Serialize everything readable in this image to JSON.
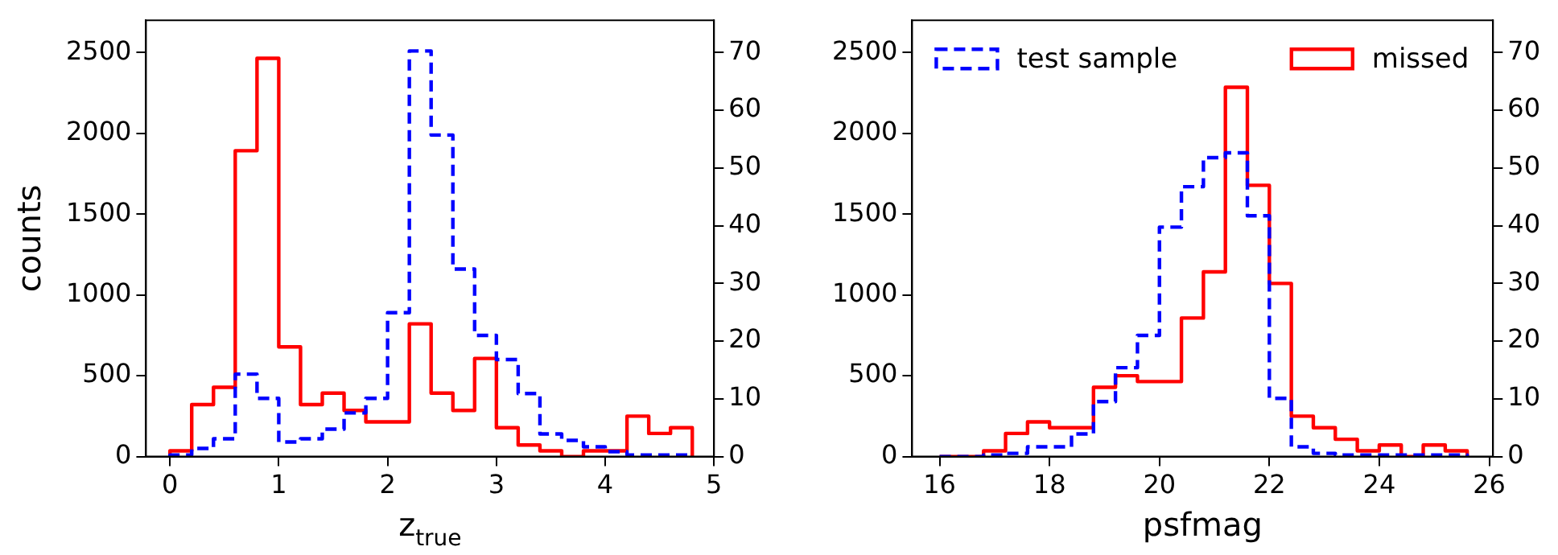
{
  "chart_data": [
    {
      "type": "histogram",
      "xlabel": "z$_{true}$",
      "ylabel": "counts",
      "bins": [
        0,
        0.2,
        0.4,
        0.6,
        0.8,
        1.0,
        1.2,
        1.4,
        1.6,
        1.8,
        2.0,
        2.2,
        2.4,
        2.6,
        2.8,
        3.0,
        3.2,
        3.4,
        3.6,
        3.8,
        4.0,
        4.2,
        4.4,
        4.6,
        4.8
      ],
      "series": [
        {
          "color": "#0000ff",
          "line_style": "dashed",
          "values": [
            10,
            50,
            110,
            510,
            360,
            90,
            110,
            170,
            270,
            360,
            890,
            2510,
            1990,
            1160,
            750,
            600,
            390,
            140,
            100,
            60,
            30,
            10,
            10,
            10
          ]
        },
        {
          "color": "#ff0000",
          "line_style": "solid",
          "axis": "y2",
          "values": [
            1,
            9,
            12,
            53,
            69,
            19,
            9,
            11,
            8,
            6,
            6,
            23,
            11,
            8,
            17,
            5,
            2,
            1,
            0,
            1,
            1,
            7,
            4,
            5
          ]
        }
      ],
      "xlim": [
        -0.22,
        5
      ],
      "xticks": [
        0,
        1,
        2,
        3,
        4,
        5
      ],
      "ylim": [
        0,
        2700
      ],
      "yticks": [
        0,
        500,
        1000,
        1500,
        2000,
        2500
      ],
      "y2lim": [
        0,
        75.6
      ],
      "y2ticks": [
        0,
        10,
        20,
        30,
        40,
        50,
        60,
        70
      ],
      "grid": false,
      "legend": false
    },
    {
      "type": "histogram",
      "xlabel": "psfmag",
      "bins": [
        16.0,
        16.4,
        16.8,
        17.2,
        17.6,
        18.0,
        18.4,
        18.8,
        19.2,
        19.6,
        20.0,
        20.4,
        20.8,
        21.2,
        21.6,
        22.0,
        22.4,
        22.8,
        23.2,
        23.6,
        24.0,
        24.4,
        24.8,
        25.2,
        25.6
      ],
      "series": [
        {
          "name": "test sample",
          "color": "#0000ff",
          "line_style": "dashed",
          "values": [
            0,
            0,
            10,
            20,
            60,
            60,
            140,
            340,
            550,
            750,
            1420,
            1670,
            1850,
            1880,
            1490,
            360,
            60,
            20,
            10,
            10,
            10,
            10,
            10,
            10
          ]
        },
        {
          "name": "missed",
          "color": "#ff0000",
          "line_style": "solid",
          "axis": "y2",
          "values": [
            0,
            0,
            1,
            4,
            6,
            5,
            5,
            12,
            14,
            13,
            13,
            24,
            32,
            64,
            47,
            30,
            7,
            5,
            3,
            1,
            2,
            0,
            2,
            1
          ]
        }
      ],
      "xlim": [
        15.5,
        26.07
      ],
      "xticks": [
        16,
        18,
        20,
        22,
        24,
        26
      ],
      "ylim": [
        0,
        2700
      ],
      "yticks": [
        0,
        500,
        1000,
        1500,
        2000,
        2500
      ],
      "y2lim": [
        0,
        75.6
      ],
      "y2ticks": [
        0,
        10,
        20,
        30,
        40,
        50,
        60,
        70
      ],
      "grid": false,
      "legend": "top"
    }
  ]
}
